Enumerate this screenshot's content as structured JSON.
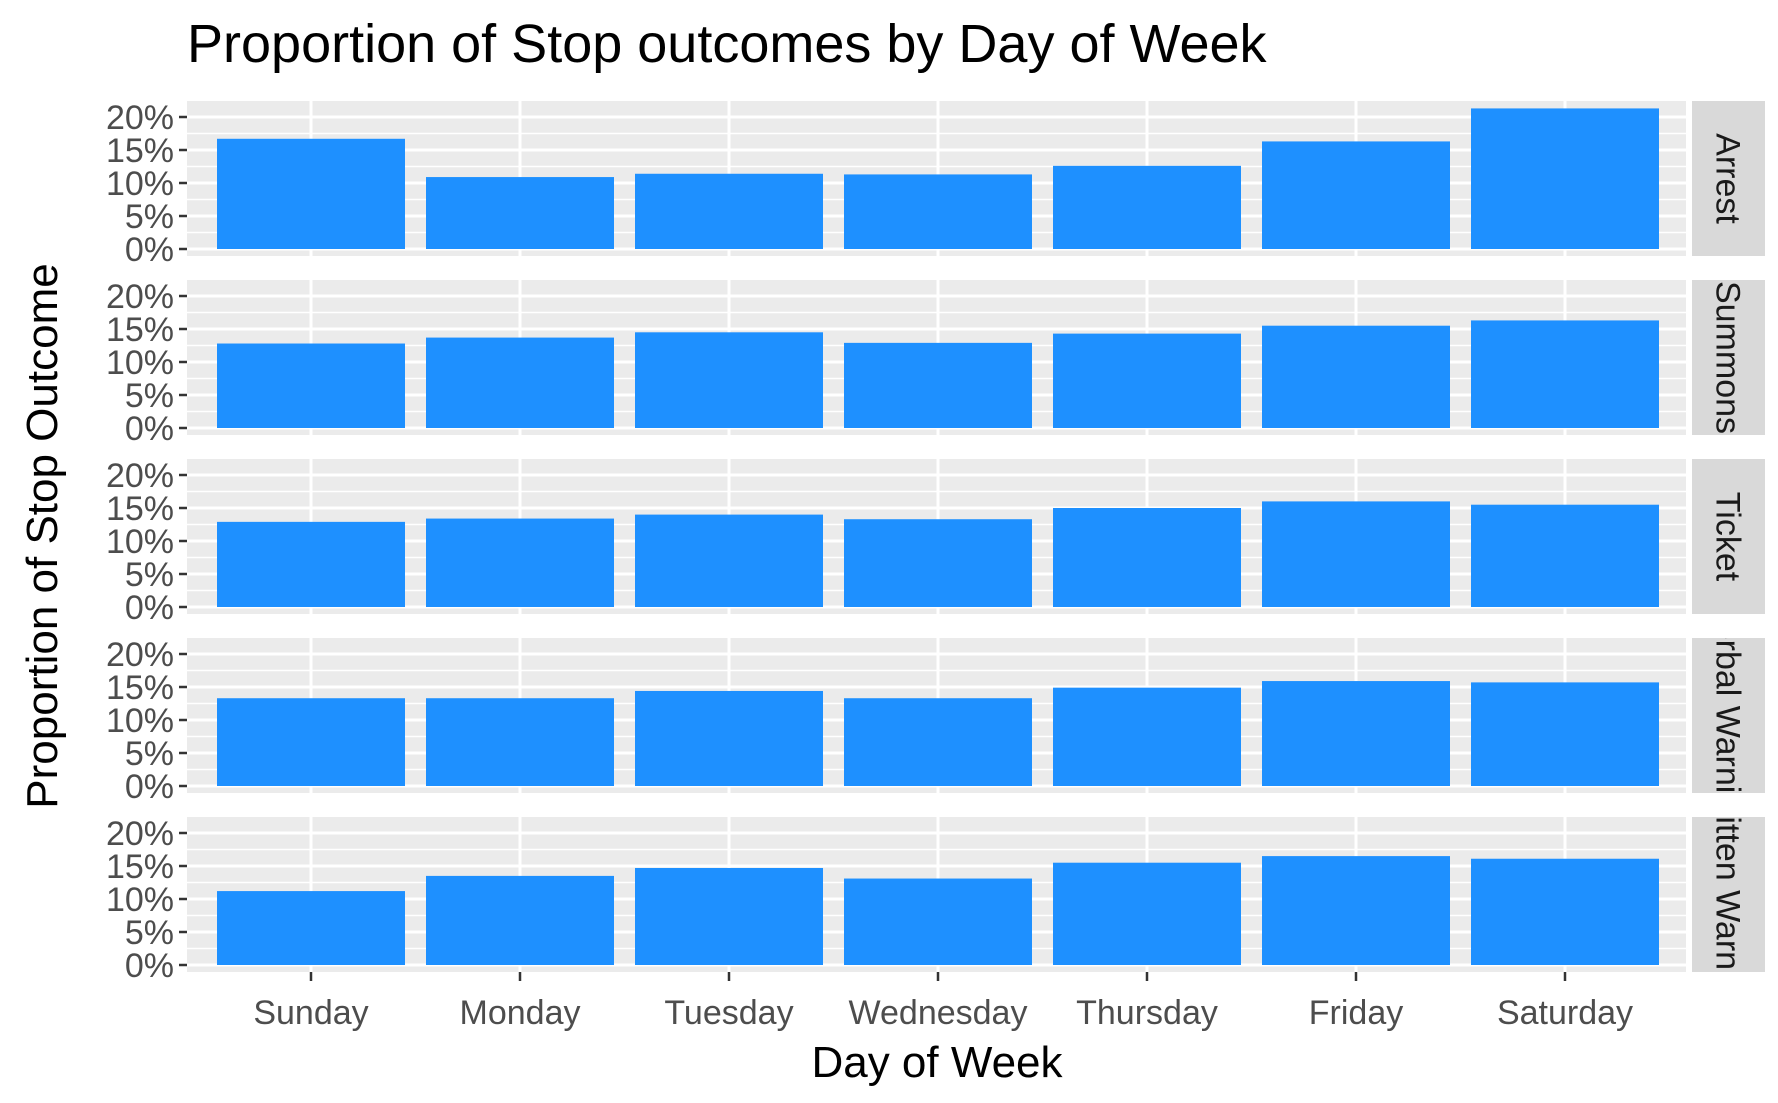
{
  "chart_data": {
    "type": "bar",
    "title": "Proportion of Stop outcomes by Day of Week",
    "xlabel": "Day of Week",
    "ylabel": "Proportion of Stop Outcome",
    "categories": [
      "Sunday",
      "Monday",
      "Tuesday",
      "Wednesday",
      "Thursday",
      "Friday",
      "Saturday"
    ],
    "ylim": [
      0,
      0.22
    ],
    "yticks": [
      0,
      0.05,
      0.1,
      0.15,
      0.2
    ],
    "ytick_labels": [
      "0%",
      "5%",
      "10%",
      "15%",
      "20%"
    ],
    "bar_color": "#1E90FF",
    "facets": [
      {
        "label": "Arrest",
        "values": [
          0.167,
          0.109,
          0.114,
          0.113,
          0.126,
          0.163,
          0.213
        ]
      },
      {
        "label": "Summons",
        "values": [
          0.128,
          0.137,
          0.145,
          0.129,
          0.143,
          0.155,
          0.163
        ]
      },
      {
        "label": "Ticket",
        "values": [
          0.129,
          0.134,
          0.14,
          0.133,
          0.15,
          0.16,
          0.155
        ]
      },
      {
        "label": "Verbal Warning",
        "values": [
          0.133,
          0.133,
          0.144,
          0.133,
          0.149,
          0.159,
          0.157
        ]
      },
      {
        "label": "Written Warning",
        "values": [
          0.112,
          0.135,
          0.147,
          0.131,
          0.155,
          0.165,
          0.161
        ]
      }
    ]
  }
}
